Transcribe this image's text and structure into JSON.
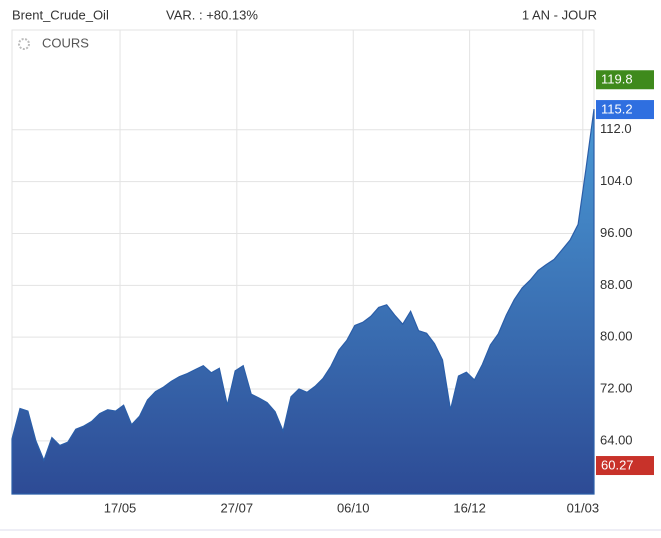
{
  "chart_data": {
    "type": "area",
    "title": "Brent_Crude_Oil",
    "change": "VAR. : +80.13%",
    "period": "1 AN - JOUR",
    "series": [
      {
        "name": "COURS",
        "color": "#2b5ea8",
        "gradient": [
          "#4a9ad6",
          "#2d4b95"
        ],
        "values": [
          64.3,
          69.0,
          68.6,
          64.0,
          61.0,
          64.5,
          63.3,
          63.8,
          65.8,
          66.3,
          67.0,
          68.2,
          68.8,
          68.6,
          69.5,
          66.5,
          67.8,
          70.3,
          71.6,
          72.3,
          73.2,
          73.9,
          74.4,
          75.0,
          75.6,
          74.5,
          75.2,
          69.5,
          74.8,
          75.6,
          71.2,
          70.6,
          69.9,
          68.5,
          65.5,
          70.8,
          72.0,
          71.5,
          72.4,
          73.6,
          75.5,
          78.0,
          79.5,
          81.8,
          82.3,
          83.2,
          84.6,
          85.0,
          83.4,
          82.0,
          84.0,
          81.0,
          80.6,
          79.0,
          76.5,
          68.8,
          74.0,
          74.6,
          73.4,
          75.8,
          78.8,
          80.5,
          83.4,
          85.8,
          87.6,
          88.8,
          90.3,
          91.2,
          92.0,
          93.5,
          95.0,
          97.4,
          106.0,
          115.2
        ]
      }
    ],
    "markers": [
      {
        "value": 119.8,
        "color": "#3f8a1c"
      },
      {
        "value": 115.2,
        "color": "#2f6fe0"
      },
      {
        "value": 60.27,
        "color": "#c8322a"
      }
    ],
    "xlim": [
      0,
      73
    ],
    "xticks": [
      {
        "value": 13.55,
        "label": "17/05"
      },
      {
        "value": 28.2,
        "label": "27/07"
      },
      {
        "value": 42.8,
        "label": "06/10"
      },
      {
        "value": 57.4,
        "label": "16/12"
      },
      {
        "value": 71.6,
        "label": "01/03"
      }
    ],
    "ylim": [
      55.8,
      127.4
    ],
    "yticks": [
      {
        "value": 64,
        "label": "64.00"
      },
      {
        "value": 72,
        "label": "72.00"
      },
      {
        "value": 80,
        "label": "80.00"
      },
      {
        "value": 88,
        "label": "88.00"
      },
      {
        "value": 96,
        "label": "96.00"
      },
      {
        "value": 104,
        "label": "104.0"
      },
      {
        "value": 112,
        "label": "112.0"
      }
    ],
    "grid": true
  }
}
